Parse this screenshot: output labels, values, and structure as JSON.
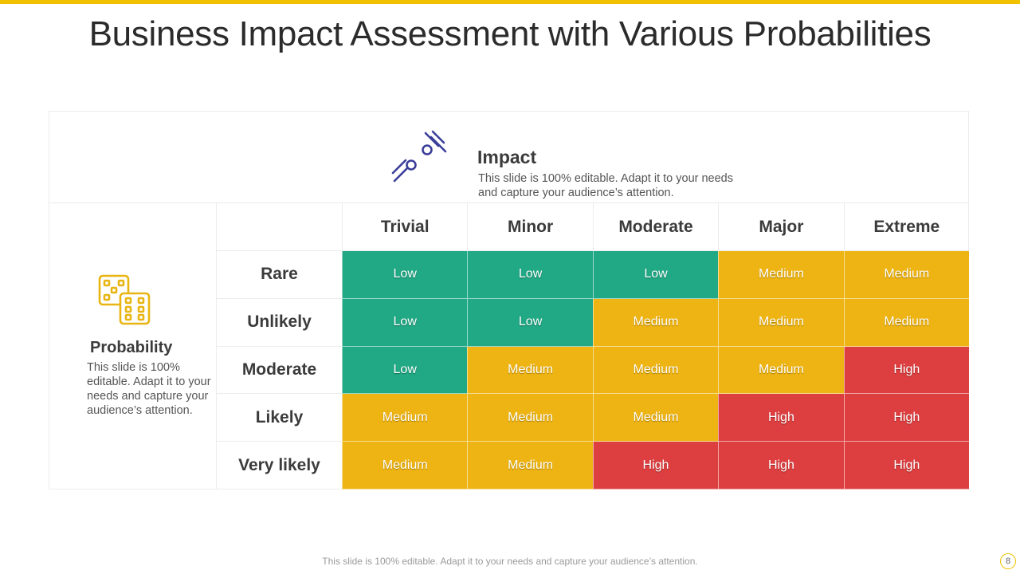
{
  "slide": {
    "title": "Business Impact Assessment with Various Probabilities",
    "footer": "This slide is 100% editable. Adapt it to your needs and capture your audience’s attention.",
    "page_number": "8",
    "accent_color": "#f2c200"
  },
  "impact": {
    "icon": "comet-icon",
    "title": "Impact",
    "description": "This slide is 100% editable. Adapt it to your needs and capture your audience’s attention."
  },
  "probability": {
    "icon": "dice-icon",
    "title": "Probability",
    "description": "This slide is 100% editable. Adapt it to your needs and capture your audience’s attention."
  },
  "matrix": {
    "columns": [
      "Trivial",
      "Minor",
      "Moderate",
      "Major",
      "Extreme"
    ],
    "rows": [
      {
        "label": "Rare",
        "cells": [
          "Low",
          "Low",
          "Low",
          "Medium",
          "Medium"
        ]
      },
      {
        "label": "Unlikely",
        "cells": [
          "Low",
          "Low",
          "Medium",
          "Medium",
          "Medium"
        ]
      },
      {
        "label": "Moderate",
        "cells": [
          "Low",
          "Medium",
          "Medium",
          "Medium",
          "High"
        ]
      },
      {
        "label": "Likely",
        "cells": [
          "Medium",
          "Medium",
          "Medium",
          "High",
          "High"
        ]
      },
      {
        "label": "Very likely",
        "cells": [
          "Medium",
          "Medium",
          "High",
          "High",
          "High"
        ]
      }
    ],
    "colors": {
      "Low": "#21a884",
      "Medium": "#eeb413",
      "High": "#dd3f40"
    }
  }
}
